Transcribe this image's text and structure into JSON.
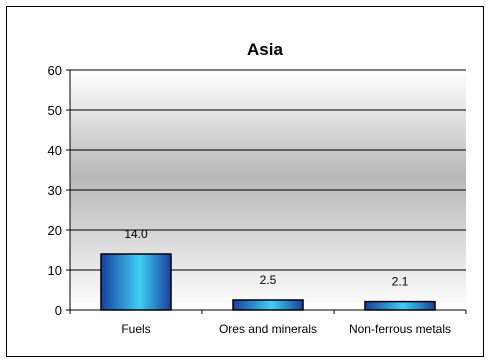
{
  "chart_data": {
    "type": "bar",
    "title": "Asia",
    "categories": [
      "Fuels",
      "Ores and minerals",
      "Non-ferrous metals"
    ],
    "values": [
      14.0,
      2.5,
      2.1
    ],
    "data_labels": [
      "14.0",
      "2.5",
      "2.1"
    ],
    "xlabel": "",
    "ylabel": "",
    "ylim": [
      0,
      60
    ],
    "yticks": [
      0,
      10,
      20,
      30,
      40,
      50,
      60
    ],
    "grid": true,
    "legend": "none",
    "colors": {
      "bar_light": "#3fd0f5",
      "bar_dark": "#1a3fa0",
      "plot_top": "#ffffff",
      "plot_mid": "#b8b8b8"
    }
  }
}
